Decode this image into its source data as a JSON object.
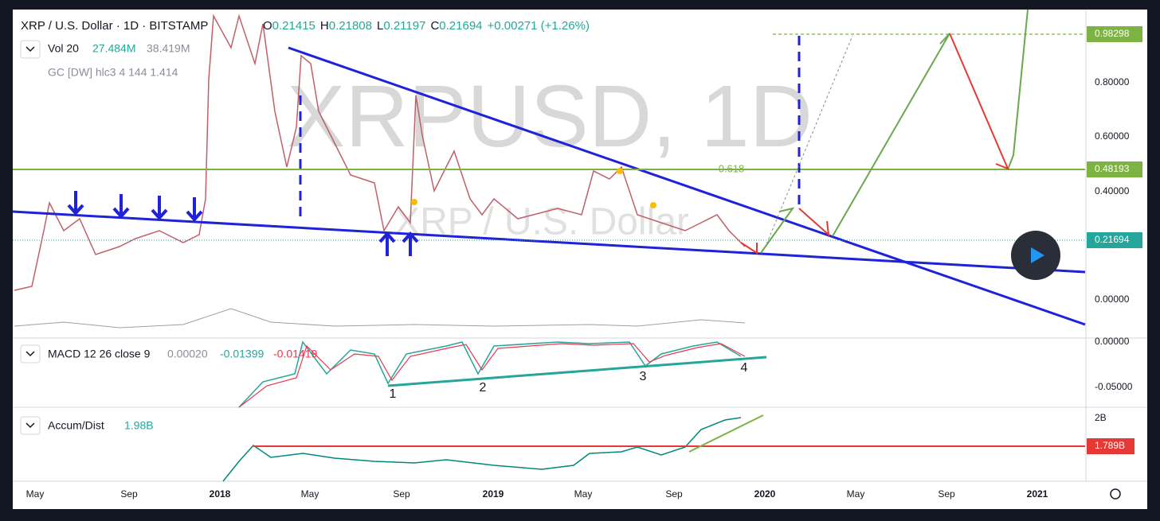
{
  "header": {
    "symbol": "XRP / U.S. Dollar · 1D · BITSTAMP",
    "open": "0.21415",
    "high": "0.21808",
    "low": "0.21197",
    "close": "0.21694",
    "change": "+0.00271 (+1.26%)"
  },
  "indicators": [
    {
      "name": "Vol 20",
      "values": [
        "27.484M",
        "38.419M"
      ]
    },
    {
      "name": "GC [DW] hlc3 4 144 1.414"
    },
    {
      "name": "MACD 12 26 close 9",
      "values": [
        "0.00020",
        "-0.01399",
        "-0.01419"
      ]
    },
    {
      "name": "Accum/Dist",
      "values": [
        "1.98B"
      ]
    }
  ],
  "watermark": {
    "symbol": "XRPUSD, 1D",
    "description": "XRP / U.S. Dollar"
  },
  "annotations": {
    "fib": "0.618",
    "waves": [
      "1",
      "2",
      "3",
      "4"
    ]
  },
  "price_axis": [
    "0.98298",
    "0.80000",
    "0.60000",
    "0.48193",
    "0.40000",
    "0.21694",
    "0.00000"
  ],
  "macd_axis": [
    "0.00000",
    "-0.05000"
  ],
  "ad_axis": [
    "2B",
    "1.789B"
  ],
  "time_axis": [
    "May",
    "Sep",
    "2018",
    "May",
    "Sep",
    "2019",
    "May",
    "Sep",
    "2020",
    "May",
    "Sep",
    "2021"
  ]
}
